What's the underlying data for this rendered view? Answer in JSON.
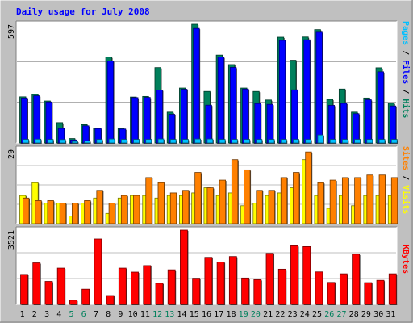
{
  "chart_data": [
    {
      "type": "bar",
      "title": "Daily usage for July 2008",
      "panel": "hits-files-pages",
      "ymax_label": "597",
      "ylim": [
        0,
        597
      ],
      "legend": {
        "pages": "Pages",
        "files": "Files",
        "hits": "Hits",
        "sep": " / "
      },
      "categories": [
        "1",
        "2",
        "3",
        "4",
        "5",
        "6",
        "7",
        "8",
        "9",
        "10",
        "11",
        "12",
        "13",
        "14",
        "15",
        "16",
        "17",
        "18",
        "19",
        "20",
        "21",
        "22",
        "23",
        "24",
        "25",
        "26",
        "27",
        "28",
        "29",
        "30",
        "31"
      ],
      "series": [
        {
          "name": "Hits",
          "values": [
            232,
            244,
            211,
            102,
            22,
            92,
            75,
            432,
            74,
            231,
            234,
            379,
            155,
            276,
            597,
            259,
            442,
            394,
            276,
            259,
            216,
            532,
            416,
            533,
            570,
            219,
            271,
            155,
            226,
            378,
            200
          ]
        },
        {
          "name": "Files",
          "values": [
            226,
            237,
            206,
            73,
            15,
            86,
            72,
            412,
            70,
            228,
            229,
            266,
            144,
            270,
            576,
            190,
            432,
            380,
            271,
            198,
            194,
            516,
            267,
            519,
            557,
            189,
            199,
            147,
            217,
            358,
            186
          ]
        },
        {
          "name": "Pages",
          "values": [
            18,
            19,
            18,
            17,
            8,
            10,
            18,
            20,
            18,
            18,
            18,
            20,
            18,
            18,
            20,
            20,
            18,
            18,
            18,
            18,
            18,
            18,
            18,
            18,
            40,
            18,
            18,
            18,
            18,
            18,
            18
          ]
        }
      ]
    },
    {
      "type": "bar",
      "panel": "sites-visits",
      "ymax_label": "29",
      "ylim": [
        0,
        29
      ],
      "legend": {
        "sites": "Sites",
        "visits": "Visits",
        "sep": " / "
      },
      "categories": [
        "1",
        "2",
        "3",
        "4",
        "5",
        "6",
        "7",
        "8",
        "9",
        "10",
        "11",
        "12",
        "13",
        "14",
        "15",
        "16",
        "17",
        "18",
        "19",
        "20",
        "21",
        "22",
        "23",
        "24",
        "25",
        "26",
        "27",
        "28",
        "29",
        "30",
        "31"
      ],
      "series": [
        {
          "name": "Sites",
          "values": [
            11,
            16,
            8,
            8,
            3,
            8,
            10,
            4,
            10,
            11,
            11,
            10,
            11,
            11,
            12,
            14,
            11,
            12,
            7,
            8,
            11,
            12,
            14,
            25,
            11,
            6,
            11,
            7,
            11,
            11,
            11
          ]
        },
        {
          "name": "Visits",
          "values": [
            10,
            9,
            9,
            8,
            8,
            9,
            13,
            8,
            11,
            11,
            18,
            16,
            12,
            13,
            20,
            14,
            17,
            25,
            21,
            13,
            13,
            18,
            20,
            28,
            16,
            17,
            18,
            18,
            19,
            19,
            18
          ]
        }
      ]
    },
    {
      "type": "bar",
      "panel": "kbytes",
      "ymax_label": "3521",
      "ylim": [
        0,
        3521
      ],
      "legend": {
        "kbytes": "KBytes"
      },
      "categories": [
        "1",
        "2",
        "3",
        "4",
        "5",
        "6",
        "7",
        "8",
        "9",
        "10",
        "11",
        "12",
        "13",
        "14",
        "15",
        "16",
        "17",
        "18",
        "19",
        "20",
        "21",
        "22",
        "23",
        "24",
        "25",
        "26",
        "27",
        "28",
        "29",
        "30",
        "31"
      ],
      "series": [
        {
          "name": "KBytes",
          "values": [
            1420,
            1970,
            1090,
            1720,
            200,
            720,
            3100,
            420,
            1720,
            1530,
            1840,
            1000,
            1640,
            3521,
            1240,
            2230,
            2010,
            2270,
            1250,
            1170,
            2420,
            1670,
            2780,
            2740,
            1540,
            1040,
            1450,
            2380,
            1030,
            1140,
            1450
          ]
        }
      ]
    }
  ],
  "colors": {
    "background": "#c0c0c0",
    "plot_bg": "#ffffff",
    "title": "#0000ff",
    "hits": "#00805c",
    "files": "#0000ff",
    "pages": "#00c0ff",
    "sites": "#ff8000",
    "visits": "#ffff00",
    "kbytes": "#ff0000",
    "weekend_label": "#00805c",
    "weekday_label": "#000000",
    "grid": "#808080",
    "slash": "#000000"
  },
  "weekend_days": [
    "5",
    "6",
    "12",
    "13",
    "19",
    "20",
    "26",
    "27"
  ]
}
